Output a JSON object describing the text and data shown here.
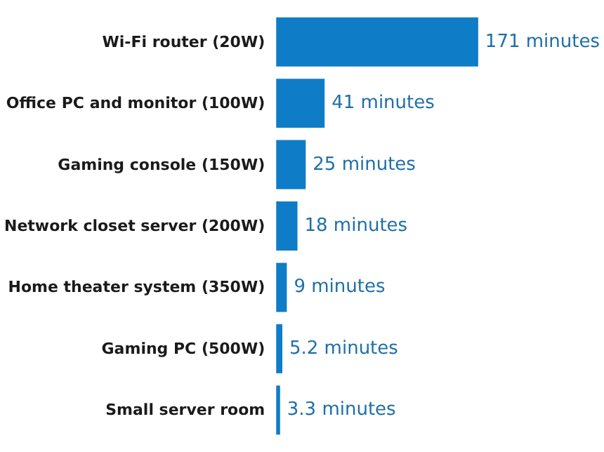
{
  "chart_data": {
    "type": "bar",
    "orientation": "horizontal",
    "categories": [
      "Wi-Fi router (20W)",
      "Office PC and monitor (100W)",
      "Gaming console (150W)",
      "Network closet server (200W)",
      "Home theater system (350W)",
      "Gaming PC (500W)",
      "Small server room"
    ],
    "values": [
      171,
      41,
      25,
      18,
      9,
      5.2,
      3.3
    ],
    "value_labels": [
      "171 minutes",
      "41 minutes",
      "25 minutes",
      "18 minutes",
      "9 minutes",
      "5.2 minutes",
      "3.3 minutes"
    ],
    "color": "#0f7cc7"
  }
}
